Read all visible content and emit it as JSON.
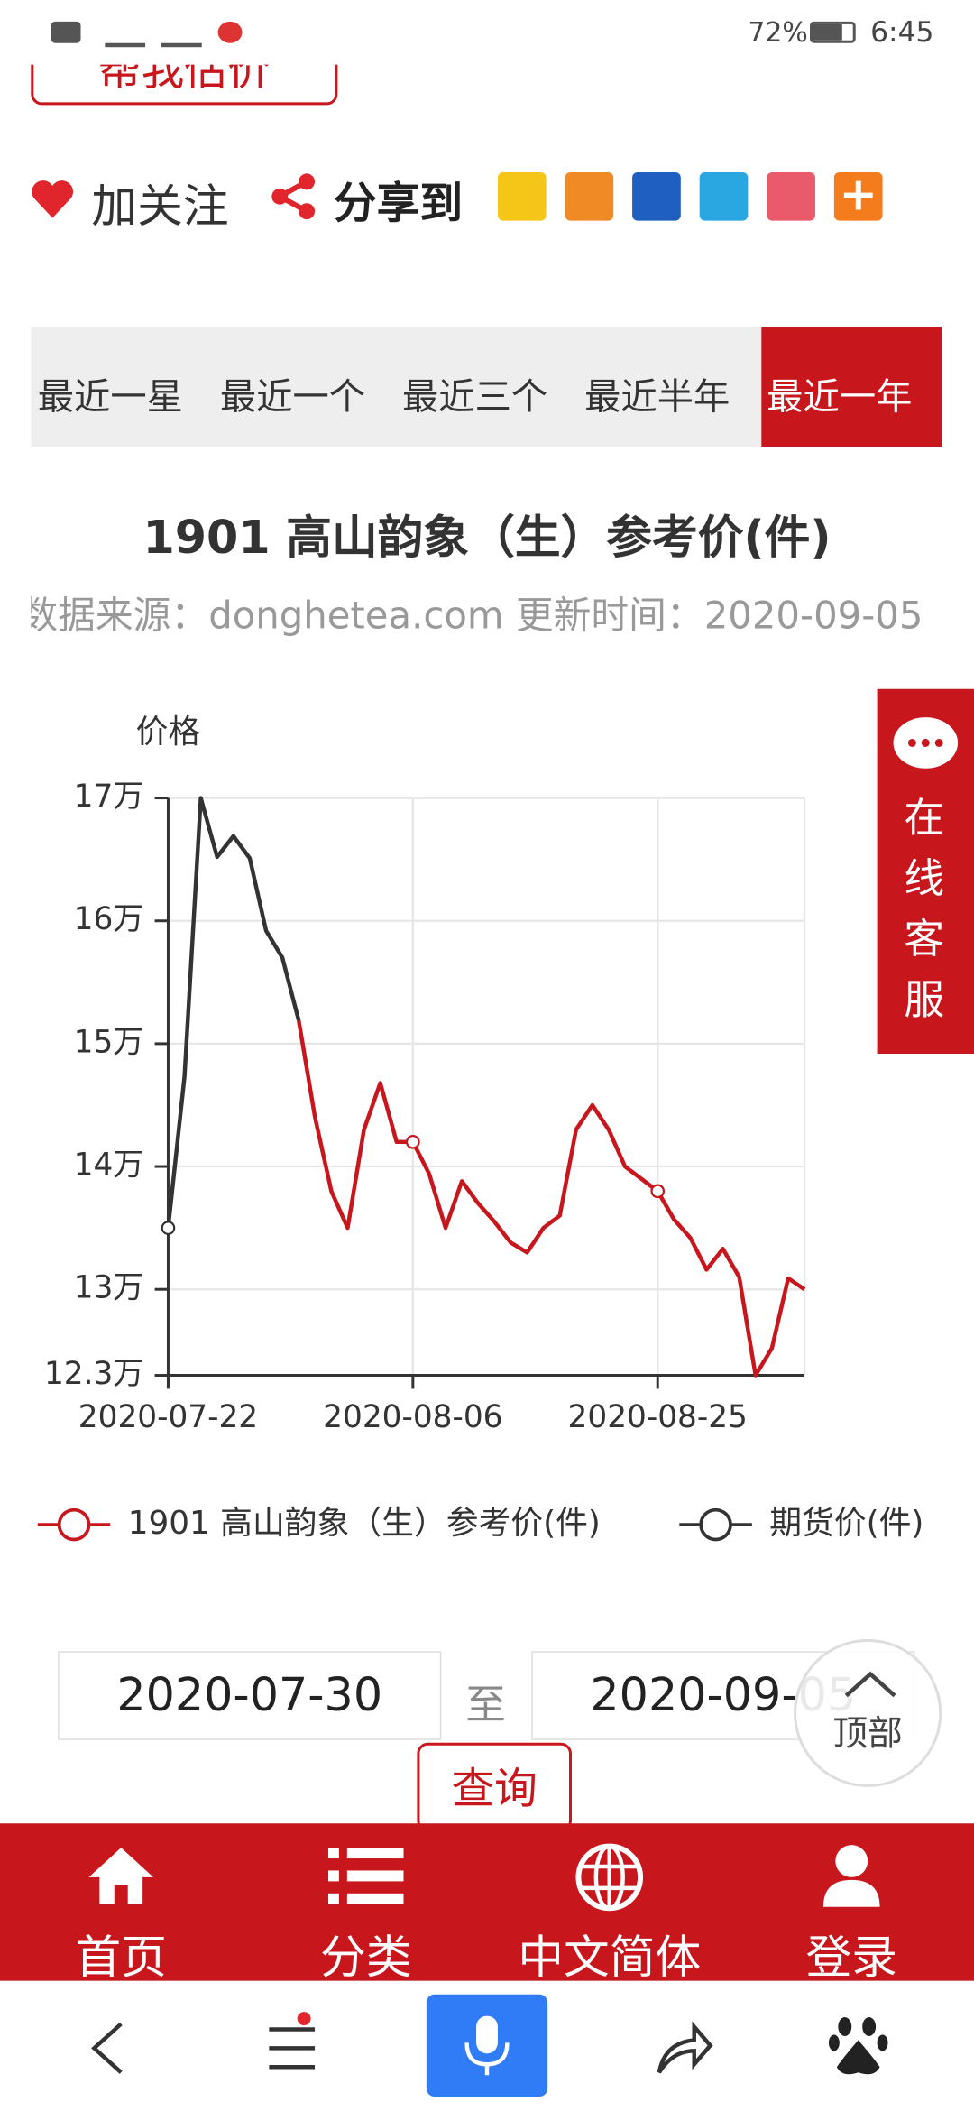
{
  "status_bar": {
    "battery": "72%",
    "time": "6:45"
  },
  "header": {
    "estimate_button": "帮我估价",
    "follow": "加关注",
    "share": "分享到"
  },
  "tabs": [
    "最近一星",
    "最近一个",
    "最近三个",
    "最近半年",
    "最近一年"
  ],
  "chart_data": {
    "type": "line",
    "title": "1901 高山韵象（生）参考价(件)",
    "subtitle": "数据来源：donghetea.com 更新时间：2020-09-05",
    "y_axis_label": "价格",
    "categories": [
      "2020-07-22",
      null,
      null,
      null,
      null,
      null,
      null,
      null,
      null,
      null,
      null,
      null,
      null,
      null,
      null,
      "2020-08-06",
      null,
      null,
      null,
      null,
      null,
      null,
      null,
      null,
      null,
      null,
      null,
      null,
      null,
      null,
      "2020-08-25",
      null,
      null,
      null,
      null,
      null,
      null,
      null,
      null,
      null
    ],
    "series": [
      {
        "name": "1901 高山韵象（生）参考价(件)",
        "color": "#c8161d",
        "values": [
          null,
          null,
          null,
          null,
          null,
          null,
          null,
          null,
          15.19,
          14.4,
          13.8,
          13.5,
          14.3,
          14.68,
          14.2,
          14.2,
          13.94,
          13.5,
          13.88,
          13.7,
          13.55,
          13.38,
          13.3,
          13.5,
          13.6,
          14.3,
          14.5,
          14.3,
          14.0,
          13.9,
          13.8,
          13.57,
          13.42,
          13.16,
          13.33,
          13.1,
          12.3,
          12.52,
          13.09,
          13.0
        ]
      },
      {
        "name": "期货价(件)",
        "color": "#333333",
        "values": [
          13.5,
          14.73,
          17.0,
          16.52,
          16.69,
          16.51,
          15.92,
          15.7,
          15.19,
          null,
          null,
          null,
          null,
          null,
          null,
          null,
          null,
          null,
          null,
          null,
          null,
          null,
          null,
          null,
          null,
          null,
          null,
          null,
          null,
          null,
          null,
          null,
          null,
          null,
          null,
          null,
          null,
          null,
          null,
          null
        ]
      }
    ],
    "ylim": [
      12.3,
      17
    ],
    "yticks": [
      {
        "value": 12.3,
        "label": "12.3万"
      },
      {
        "value": 13,
        "label": "13万"
      },
      {
        "value": 14,
        "label": "14万"
      },
      {
        "value": 15,
        "label": "15万"
      },
      {
        "value": 16,
        "label": "16万"
      },
      {
        "value": 17,
        "label": "17万"
      }
    ],
    "grid": true
  },
  "query": {
    "start_date": "2020-07-30",
    "separator": "至",
    "end_date": "2020-09-05",
    "button": "查询"
  },
  "float": {
    "service": "在线客服",
    "top": "顶部"
  },
  "nav": [
    "首页",
    "分类",
    "中文简体",
    "登录"
  ]
}
